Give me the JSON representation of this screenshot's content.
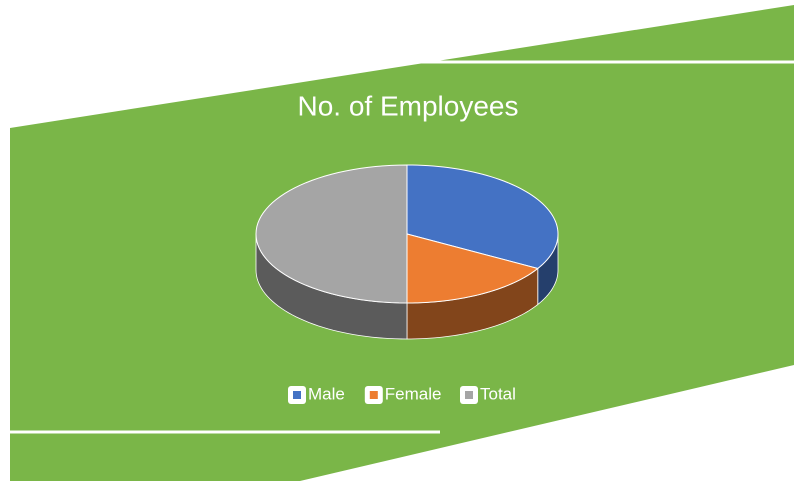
{
  "chart_data": {
    "type": "pie",
    "title": "No. of Employees",
    "categories": [
      "Male",
      "Female",
      "Total"
    ],
    "values": [
      100,
      50,
      150
    ],
    "colors": [
      "#4472c4",
      "#ed7d31",
      "#a5a5a5"
    ],
    "legend": "bottom"
  }
}
